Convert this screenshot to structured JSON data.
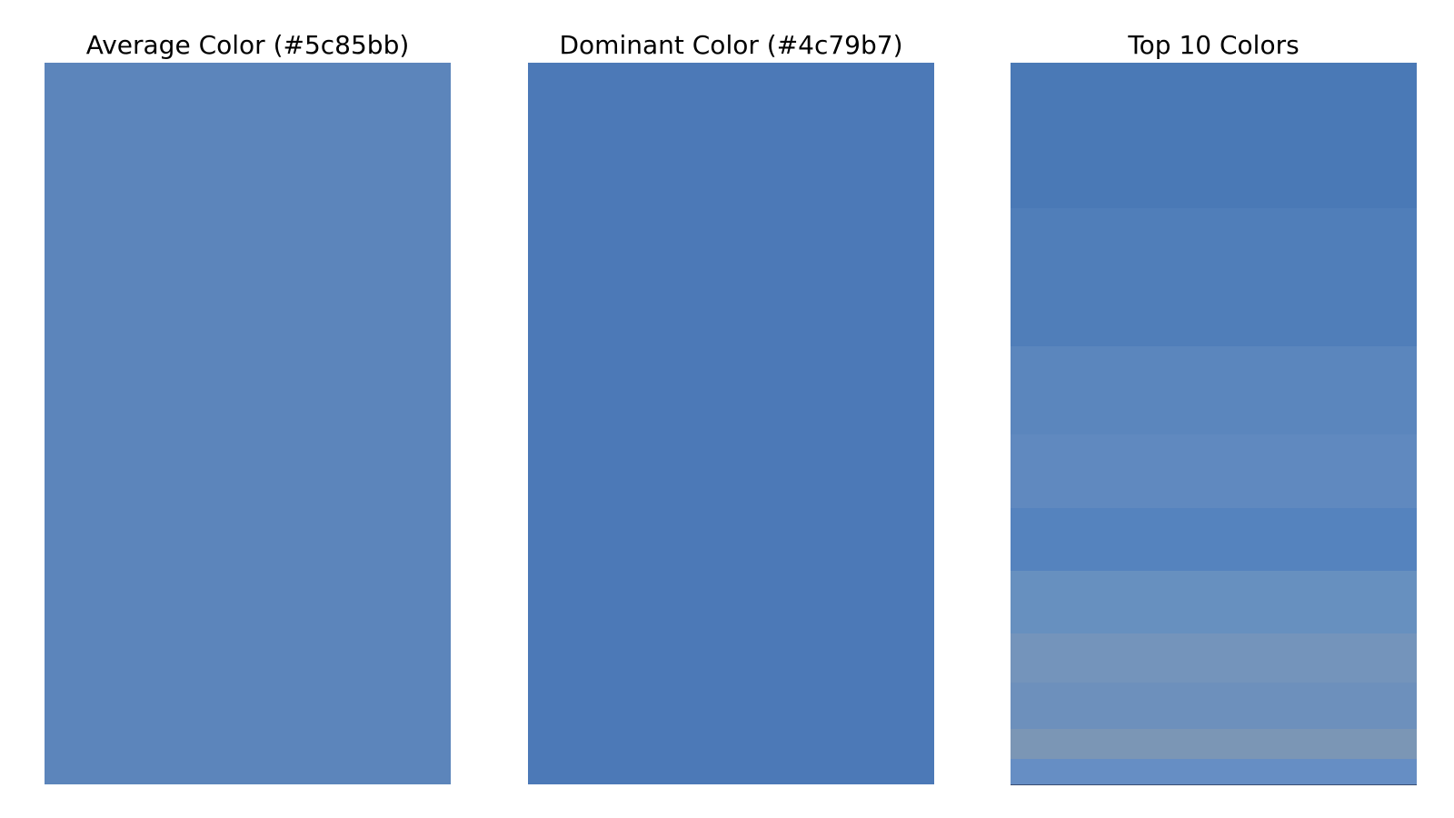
{
  "chart_data": [
    {
      "type": "color-swatch",
      "title": "Average Color (#5c85bb)",
      "color": "#5c85bb"
    },
    {
      "type": "color-swatch",
      "title": "Dominant Color (#4c79b7)",
      "color": "#4c79b7"
    },
    {
      "type": "stacked-color-bar",
      "title": "Top 10 Colors",
      "colors": [
        "#4a79b6",
        "#507eb9",
        "#5b86bd",
        "#6089bf",
        "#5583be",
        "#6790bf",
        "#7494bb",
        "#6d90bc",
        "#7b96b5",
        "#668ec4"
      ],
      "proportions": [
        0.201,
        0.191,
        0.122,
        0.101,
        0.087,
        0.086,
        0.068,
        0.065,
        0.041,
        0.035
      ]
    }
  ]
}
